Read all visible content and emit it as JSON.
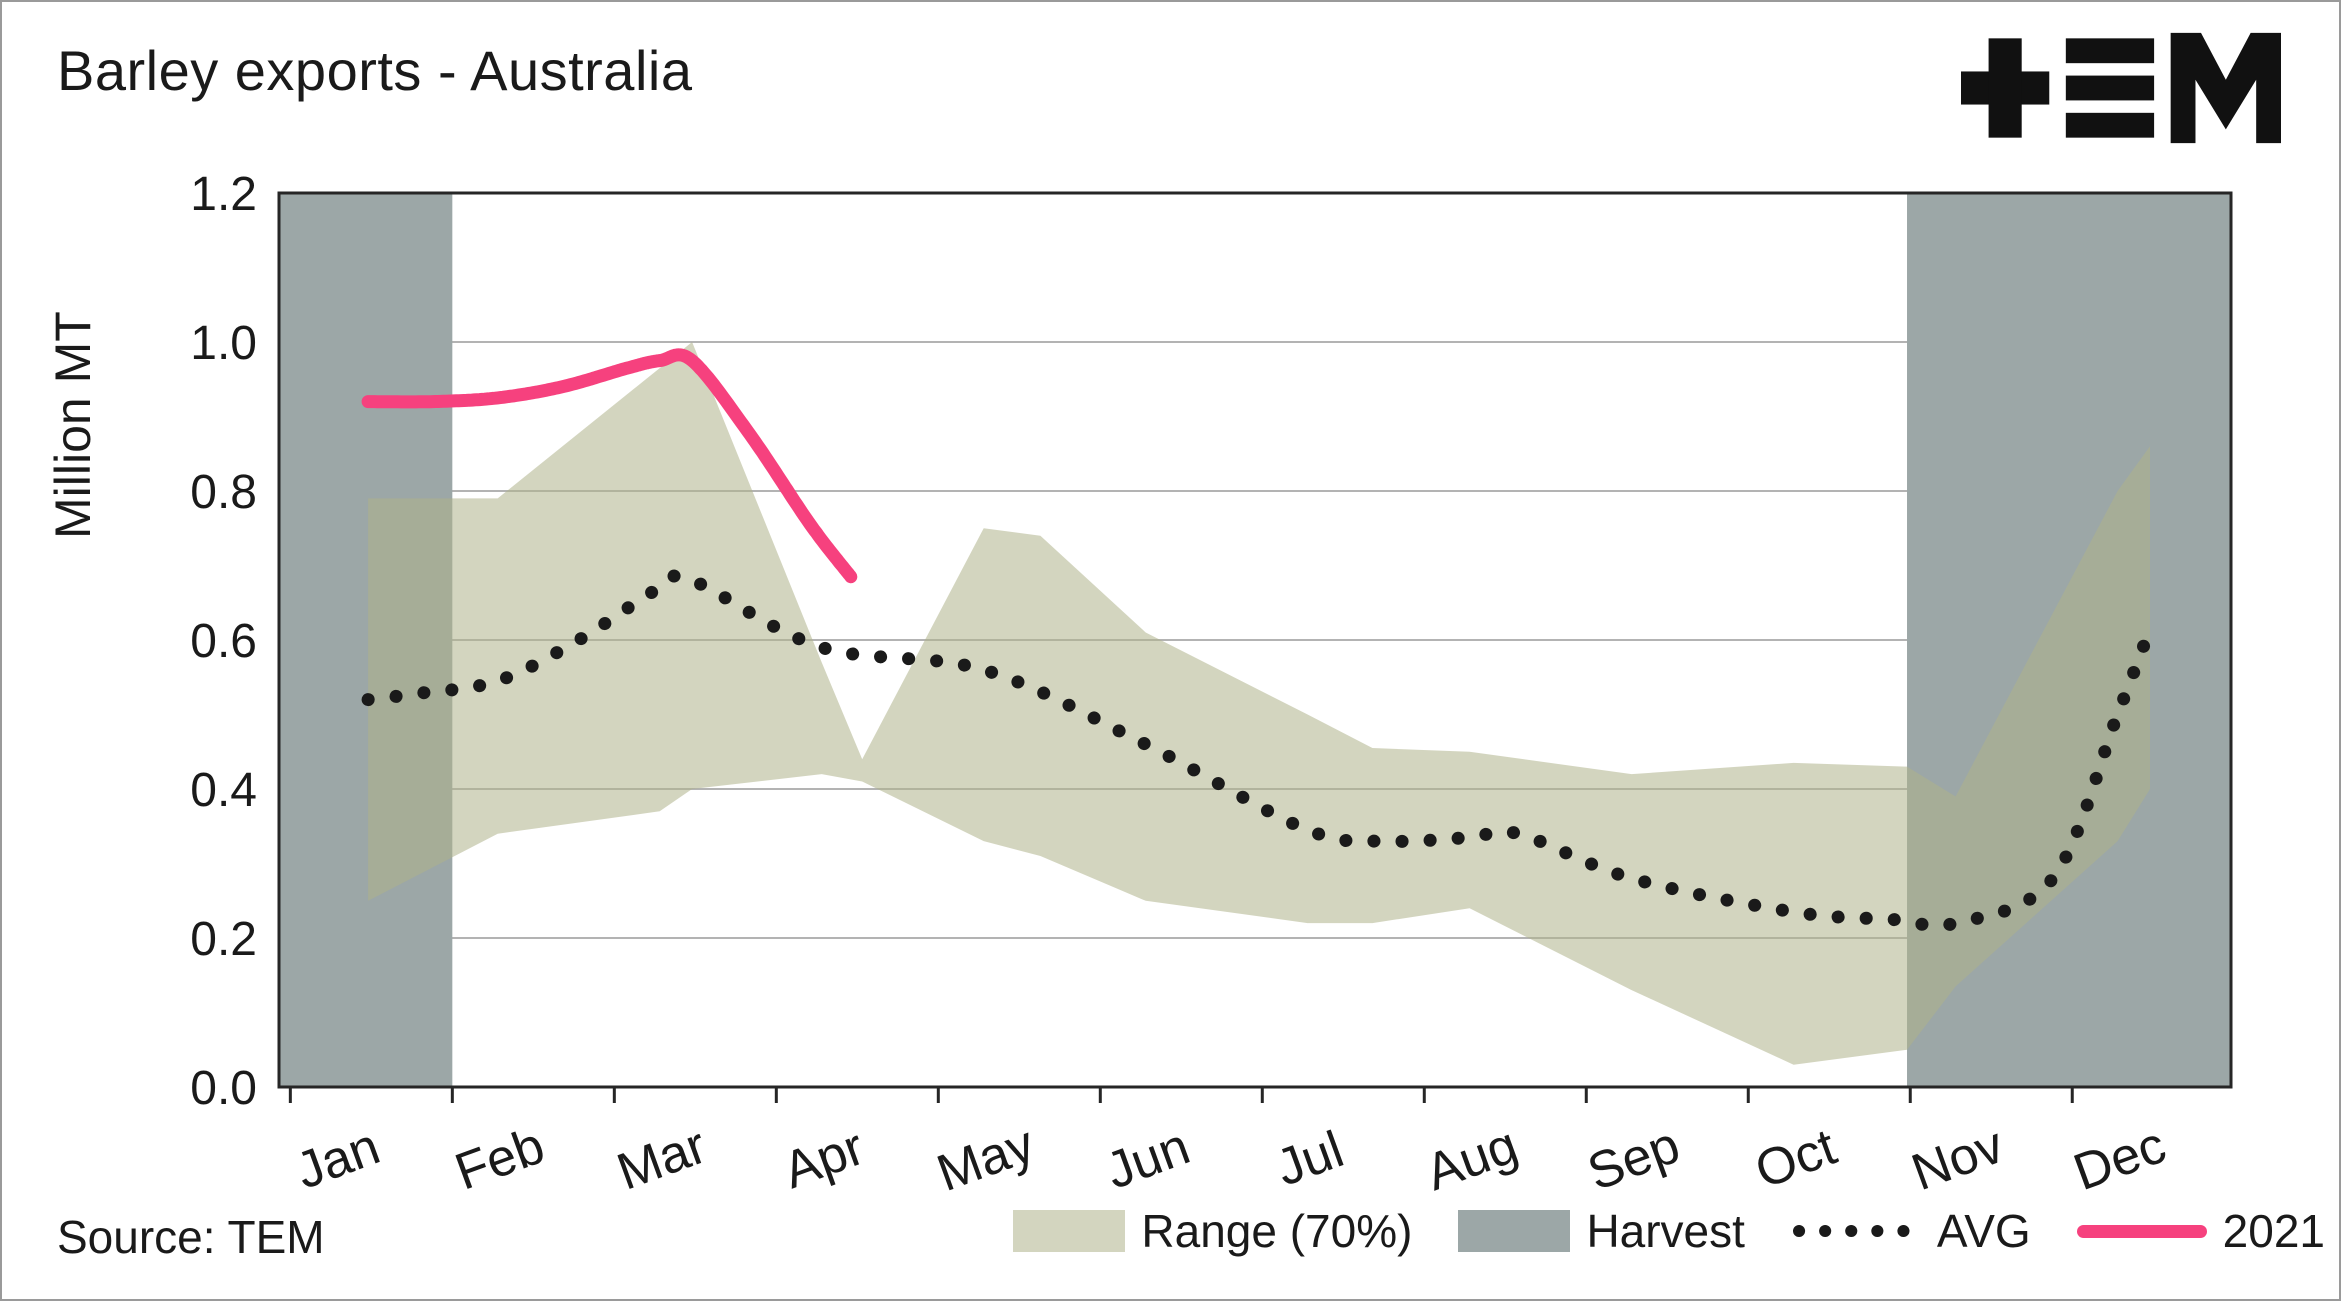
{
  "title": "Barley exports - Australia",
  "source": "Source: TEM",
  "logo_name": "TEM",
  "y_axis": {
    "label": "Million MT"
  },
  "legend": [
    {
      "label": "Range (70%)",
      "type": "band"
    },
    {
      "label": "Harvest",
      "type": "band"
    },
    {
      "label": "AVG",
      "type": "dotted-line"
    },
    {
      "label": "2021",
      "type": "line"
    }
  ],
  "colors": {
    "range_band": "#afb28a",
    "range_band_opacity": 0.55,
    "harvest": "#9ca7a7",
    "avg": "#1a1a1a",
    "line_2021": "#f6417e",
    "grid": "#b3b3b3",
    "border": "#262626",
    "text": "#1a1a1a"
  },
  "chart_data": {
    "type": "line",
    "title": "Barley exports - Australia",
    "xlabel": "",
    "ylabel": "Million MT",
    "ylim": [
      0,
      1.2
    ],
    "y_step": 0.2,
    "x_domain": [
      -0.35,
      11.7
    ],
    "grid": true,
    "legend_position": "bottom",
    "categories": [
      "Jan",
      "Feb",
      "Mar",
      "Apr",
      "May",
      "Jun",
      "Jul",
      "Aug",
      "Sep",
      "Oct",
      "Nov",
      "Dec"
    ],
    "series": [
      {
        "name": "AVG",
        "style": "dotted",
        "x": [
          0.2,
          0.5,
          1.0,
          1.5,
          2.0,
          2.2,
          3.0,
          4.0,
          5.0,
          6.0,
          6.5,
          7.0,
          7.3,
          8.0,
          9.0,
          9.6,
          10.0,
          10.6,
          11.0,
          11.2
        ],
        "values": [
          0.52,
          0.528,
          0.545,
          0.6,
          0.67,
          0.68,
          0.59,
          0.56,
          0.46,
          0.345,
          0.33,
          0.335,
          0.34,
          0.28,
          0.235,
          0.225,
          0.22,
          0.28,
          0.5,
          0.615
        ],
        "monthly_values": [
          0.52,
          0.545,
          0.67,
          0.59,
          0.56,
          0.46,
          0.345,
          0.335,
          0.28,
          0.235,
          0.22,
          0.55
        ]
      },
      {
        "name": "2021",
        "style": "solid",
        "x": [
          0.2,
          0.6,
          1.0,
          1.4,
          1.8,
          2.0,
          2.2,
          2.56,
          2.93,
          3.18
        ],
        "values": [
          0.92,
          0.92,
          0.925,
          0.94,
          0.965,
          0.975,
          0.975,
          0.875,
          0.755,
          0.685
        ],
        "monthly_values": [
          0.92,
          0.925,
          0.975,
          0.72,
          null,
          null,
          null,
          null,
          null,
          null,
          null,
          null
        ]
      }
    ],
    "band": {
      "name": "Range (70%)",
      "x": [
        0.2,
        1.0,
        2.0,
        2.2,
        3.0,
        3.25,
        4.0,
        4.35,
        5.0,
        6.0,
        6.4,
        7.0,
        8.0,
        9.0,
        9.7,
        10.0,
        11.0,
        11.2
      ],
      "upper": [
        0.79,
        0.79,
        0.965,
        1.0,
        0.57,
        0.44,
        0.75,
        0.74,
        0.61,
        0.5,
        0.455,
        0.45,
        0.42,
        0.435,
        0.43,
        0.39,
        0.8,
        0.86
      ],
      "lower": [
        0.25,
        0.34,
        0.37,
        0.4,
        0.42,
        0.41,
        0.33,
        0.31,
        0.25,
        0.22,
        0.22,
        0.24,
        0.13,
        0.03,
        0.05,
        0.135,
        0.33,
        0.4
      ]
    },
    "harvest_bands": [
      {
        "x0": -0.35,
        "x1": 0.72
      },
      {
        "x0": 9.7,
        "x1": 11.7
      }
    ]
  }
}
